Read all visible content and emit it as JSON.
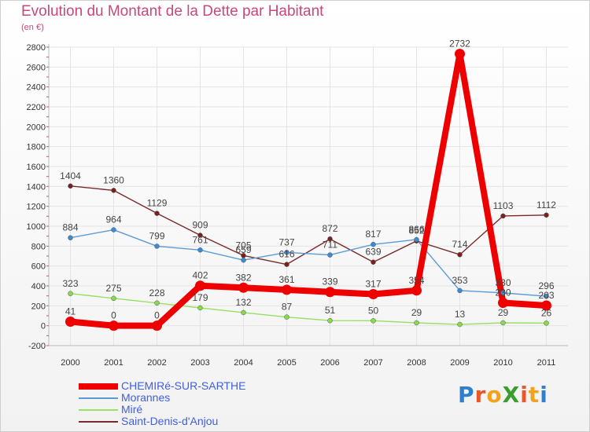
{
  "title": "Evolution du Montant de la Dette par Habitant",
  "subtitle": "(en €)",
  "logo_text": "ProXiti",
  "chart_data": {
    "type": "line",
    "title": "Evolution du Montant de la Dette par Habitant",
    "ylabel": "(en €)",
    "x": [
      "2000",
      "2001",
      "2002",
      "2003",
      "2004",
      "2005",
      "2006",
      "2007",
      "2008",
      "2009",
      "2010",
      "2011"
    ],
    "ylim": [
      -200,
      2800
    ],
    "yticks": [
      -200,
      0,
      200,
      400,
      600,
      800,
      1000,
      1200,
      1400,
      1600,
      1800,
      2000,
      2200,
      2400,
      2600,
      2800
    ],
    "grid": true,
    "legend_position": "bottom-left",
    "series": [
      {
        "name": "CHEMIRé-SUR-SARTHE",
        "color": "#ee0000",
        "values": [
          41,
          0,
          0,
          402,
          382,
          361,
          339,
          317,
          354,
          2732,
          230,
          203
        ]
      },
      {
        "name": "Morannes",
        "color": "#5b9bd5",
        "values": [
          884,
          964,
          799,
          761,
          659,
          737,
          711,
          817,
          866,
          353,
          330,
          296
        ]
      },
      {
        "name": "Miré",
        "color": "#99e066",
        "values": [
          323,
          275,
          228,
          179,
          132,
          87,
          51,
          50,
          29,
          13,
          29,
          26
        ]
      },
      {
        "name": "Saint-Denis-d'Anjou",
        "color": "#7a2a2a",
        "values": [
          1404,
          1360,
          1129,
          909,
          705,
          616,
          872,
          639,
          852,
          714,
          1103,
          1112
        ]
      }
    ]
  }
}
